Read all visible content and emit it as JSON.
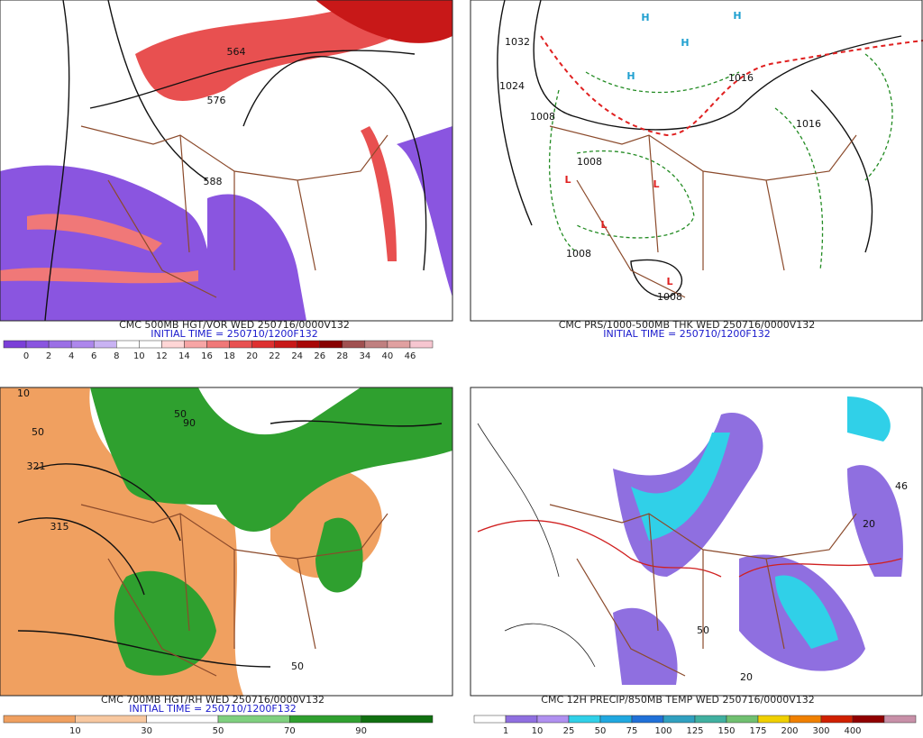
{
  "panels": [
    {
      "caption": "CMC 500MB HGT/VOR WED 250716/0000V132",
      "initial_time": "INITIAL TIME = 250710/1200F132",
      "colorbar": {
        "colors": [
          "#7b3fd8",
          "#8a55e0",
          "#9b6fe6",
          "#ad87ec",
          "#c9b3f3",
          "#ffffff",
          "#ffffff",
          "#ffd6d6",
          "#f7a5a5",
          "#f07878",
          "#e85050",
          "#de3030",
          "#c81818",
          "#a80808",
          "#880000",
          "#a05050",
          "#c08080",
          "#e0a0a0",
          "#f6c6d0"
        ],
        "labels": [
          "0",
          "2",
          "4",
          "6",
          "8",
          "10",
          "12",
          "14",
          "16",
          "18",
          "20",
          "22",
          "24",
          "26",
          "28",
          "34",
          "40",
          "46"
        ]
      },
      "map_labels": [
        "564",
        "576",
        "588"
      ]
    },
    {
      "caption": "CMC PRS/1000-500MB THK WED 250716/0000V132",
      "initial_time": "INITIAL TIME = 250710/1200F132",
      "map_labels": [
        "1032",
        "1024",
        "1008",
        "1016",
        "1016",
        "1008",
        "1008",
        "1008",
        "L",
        "L",
        "L",
        "L",
        "H",
        "H",
        "H",
        "H"
      ]
    },
    {
      "caption": "CMC 700MB HGT/RH WED 250716/0000V132",
      "initial_time": "INITIAL TIME = 250710/1200F132",
      "colorbar": {
        "colors": [
          "#f0a060",
          "#f8c8a0",
          "#ffffff",
          "#7fd07f",
          "#2fa02f",
          "#107010"
        ],
        "labels": [
          "10",
          "30",
          "50",
          "70",
          "90"
        ]
      },
      "map_labels": [
        "10",
        "50",
        "321",
        "315",
        "50",
        "90",
        "50"
      ]
    },
    {
      "caption": "CMC 12H PRECIP/850MB TEMP WED 250716/0000V132",
      "colorbar": {
        "colors": [
          "#ffffff",
          "#8f6fe0",
          "#b090f0",
          "#30d0e8",
          "#20a8e0",
          "#2070d8",
          "#30a0c0",
          "#40b0a0",
          "#70c070",
          "#f0d000",
          "#f08000",
          "#d02000",
          "#900000",
          "#c890a8"
        ],
        "labels": [
          "1",
          "10",
          "25",
          "50",
          "75",
          "100",
          "125",
          "150",
          "175",
          "200",
          "300",
          "400"
        ]
      },
      "map_labels": [
        "20",
        "50",
        "46",
        "20"
      ]
    }
  ]
}
